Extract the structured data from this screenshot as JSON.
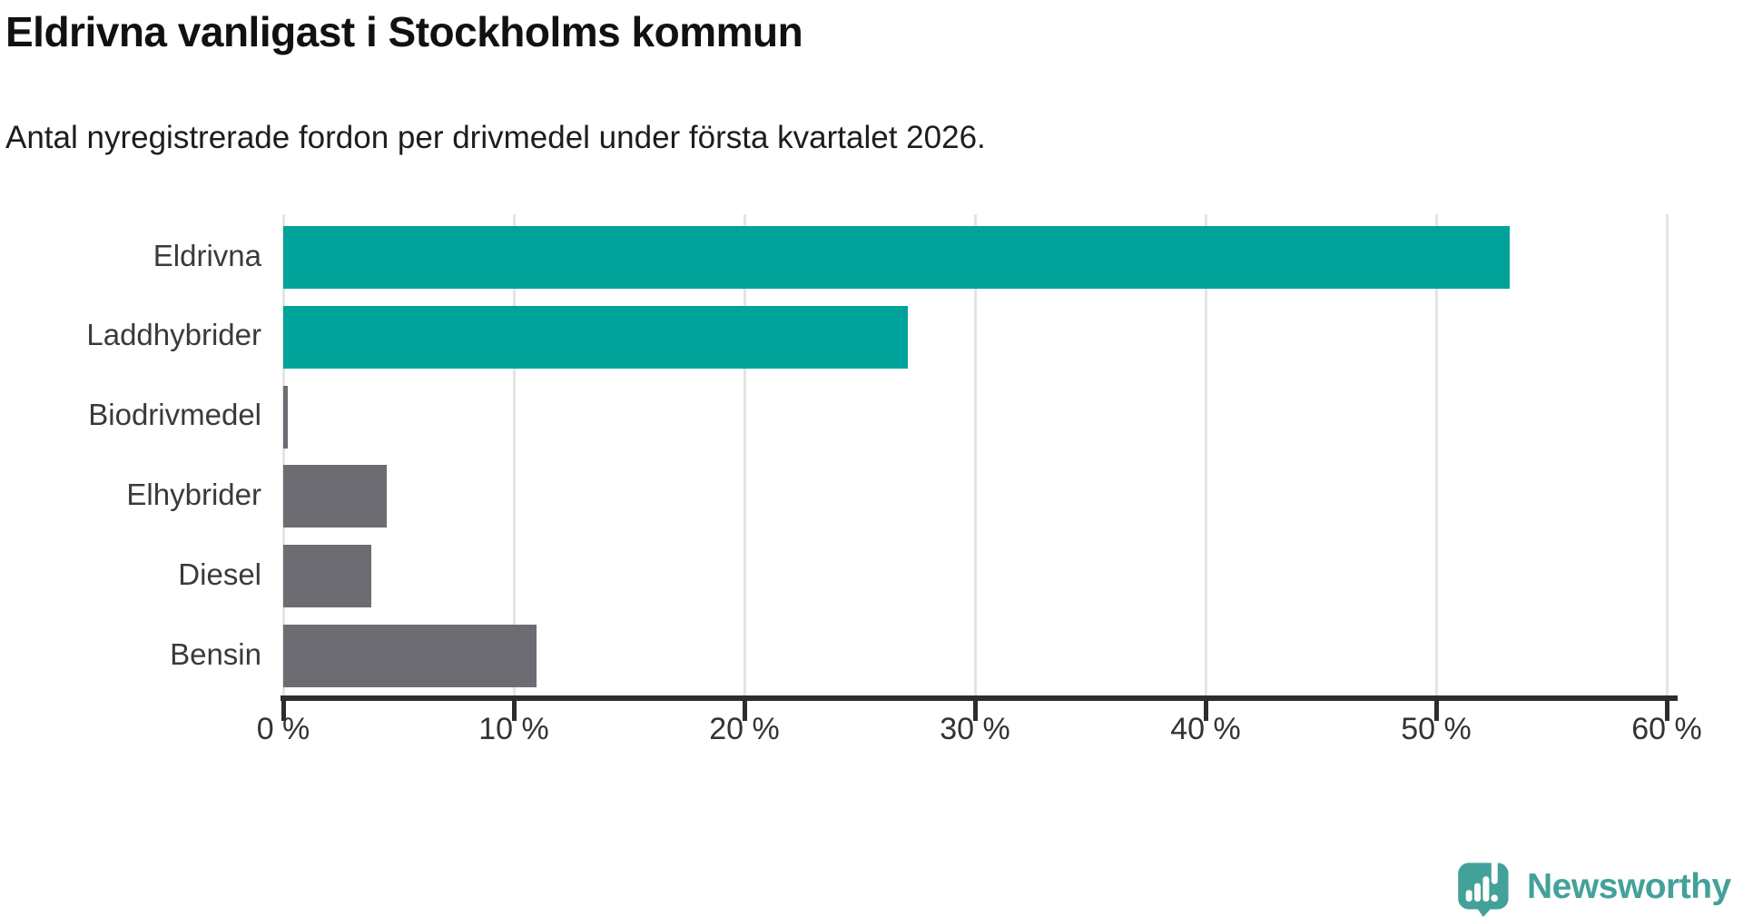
{
  "header": {
    "title": "Eldrivna vanligast i Stockholms kommun",
    "subtitle": "Antal nyregistrerade fordon per drivmedel under första kvartalet 2026."
  },
  "chart_data": {
    "type": "bar",
    "orientation": "horizontal",
    "title": "Eldrivna vanligast i Stockholms kommun",
    "subtitle": "Antal nyregistrerade fordon per drivmedel under första kvartalet 2026.",
    "categories": [
      "Eldrivna",
      "Laddhybrider",
      "Biodrivmedel",
      "Elhybrider",
      "Diesel",
      "Bensin"
    ],
    "values": [
      53.2,
      27.1,
      0.2,
      4.5,
      3.8,
      11.0
    ],
    "unit": "%",
    "bar_colors": [
      "#00a39a",
      "#00a39a",
      "#6c6c72",
      "#6c6c72",
      "#6c6c72",
      "#6c6c72"
    ],
    "xlabel": "",
    "ylabel": "",
    "xlim": [
      0,
      60
    ],
    "x_ticks": [
      0,
      10,
      20,
      30,
      40,
      50,
      60
    ],
    "x_tick_labels": [
      "0 %",
      "10 %",
      "20 %",
      "30 %",
      "40 %",
      "50 %",
      "60 %"
    ],
    "grid": "vertical-light",
    "legend": "none"
  },
  "branding": {
    "logo_text": "Newsworthy",
    "logo_icon": "newsworthy-bubble-barchart-icon",
    "logo_color": "#44a19a"
  },
  "colors": {
    "highlight_bar": "#00a39a",
    "default_bar": "#6c6c72",
    "gridline": "#e4e4e4",
    "axis": "#2d2d2d",
    "title_text": "#111111",
    "label_text": "#3a3a3a"
  }
}
